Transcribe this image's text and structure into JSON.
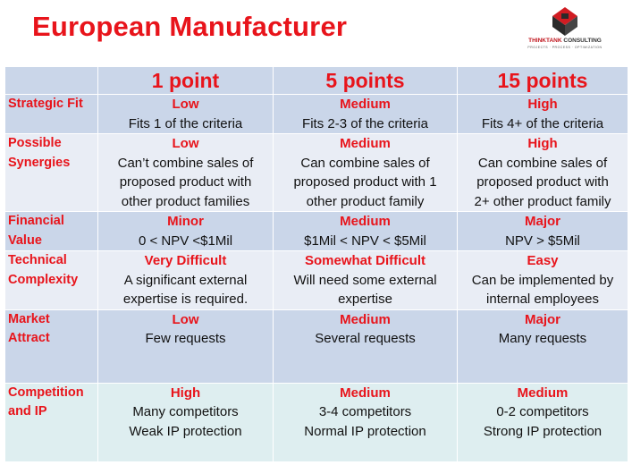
{
  "title": "European Manufacturer",
  "logo": {
    "brand_a": "THINKTANK",
    "brand_b": "CONSULTING",
    "tagline": "PROJECTS · PROCESS · OPTIMIZATION"
  },
  "columns": [
    "1 point",
    "5 points",
    "15 points"
  ],
  "rows": [
    {
      "label": [
        "Strategic Fit"
      ],
      "cells": [
        {
          "level": "Low",
          "lines": [
            "Fits 1 of the criteria"
          ]
        },
        {
          "level": "Medium",
          "lines": [
            "Fits 2-3 of the criteria"
          ]
        },
        {
          "level": "High",
          "lines": [
            "Fits  4+ of the criteria"
          ]
        }
      ]
    },
    {
      "label": [
        "Possible",
        "Synergies"
      ],
      "cells": [
        {
          "level": "Low",
          "lines": [
            "Can’t combine sales of",
            "proposed product with",
            "other product families"
          ]
        },
        {
          "level": "Medium",
          "lines": [
            "Can combine sales of",
            "proposed product with 1",
            "other product family"
          ]
        },
        {
          "level": "High",
          "lines": [
            "Can combine sales of",
            "proposed product with",
            "2+ other product family"
          ]
        }
      ]
    },
    {
      "label": [
        "Financial",
        "Value"
      ],
      "cells": [
        {
          "level": "Minor",
          "lines": [
            "0 < NPV <$1Mil"
          ]
        },
        {
          "level": "Medium",
          "lines": [
            "$1Mil < NPV < $5Mil"
          ]
        },
        {
          "level": "Major",
          "lines": [
            "NPV > $5Mil"
          ]
        }
      ]
    },
    {
      "label": [
        "Technical",
        "Complexity"
      ],
      "cells": [
        {
          "level": "Very Difficult",
          "lines": [
            "A significant external",
            "expertise is required."
          ]
        },
        {
          "level": "Somewhat Difficult",
          "lines": [
            "Will need some external",
            "expertise"
          ]
        },
        {
          "level": "Easy",
          "lines": [
            "Can be implemented by",
            "internal employees"
          ]
        }
      ]
    },
    {
      "label": [
        "Market",
        "Attract"
      ],
      "cells": [
        {
          "level": "Low",
          "lines": [
            "Few requests"
          ]
        },
        {
          "level": "Medium",
          "lines": [
            "Several requests"
          ]
        },
        {
          "level": "Major",
          "lines": [
            "Many requests"
          ]
        }
      ]
    },
    {
      "label": [
        "Competition",
        "and IP"
      ],
      "cells": [
        {
          "level": "High",
          "lines": [
            "Many competitors",
            "Weak IP protection"
          ]
        },
        {
          "level": "Medium",
          "lines": [
            "3-4 competitors",
            "Normal IP protection"
          ]
        },
        {
          "level": "Medium",
          "lines": [
            "0-2 competitors",
            "Strong IP protection"
          ]
        }
      ]
    }
  ],
  "colors": {
    "accent": "#e8141b",
    "row_dark": "#cad6e9",
    "row_light": "#e9edf5",
    "row_mint": "#deeef0"
  }
}
